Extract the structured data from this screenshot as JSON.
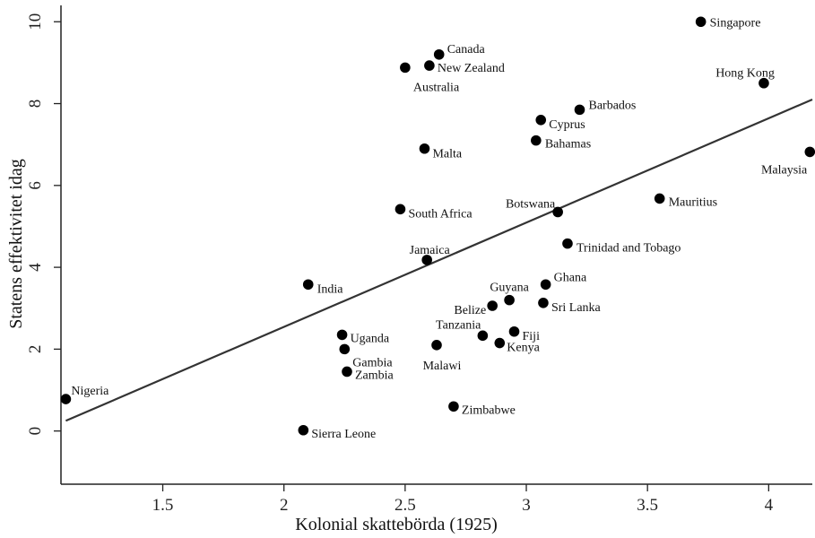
{
  "chart_data": {
    "type": "scatter",
    "title": "",
    "xlabel": "Kolonial skattebörda (1925)",
    "ylabel": "Statens effektivitet idag",
    "xlim": [
      1.08,
      4.18
    ],
    "ylim": [
      -1.3,
      10.4
    ],
    "xticks": [
      1.5,
      2,
      2.5,
      3,
      3.5,
      4
    ],
    "yticks": [
      0,
      2,
      4,
      6,
      8,
      10
    ],
    "grid": false,
    "legend": "none",
    "colors": {
      "points": "#000000",
      "line": "#333333",
      "axis": "#222222"
    },
    "fit_line": {
      "x": [
        1.1,
        4.18
      ],
      "y": [
        0.25,
        8.1
      ]
    },
    "points": [
      {
        "label": "Singapore",
        "x": 3.72,
        "y": 10.0
      },
      {
        "label": "Canada",
        "x": 2.64,
        "y": 9.2
      },
      {
        "label": "New Zealand",
        "x": 2.6,
        "y": 8.93
      },
      {
        "label": "Australia",
        "x": 2.5,
        "y": 8.88
      },
      {
        "label": "Hong Kong",
        "x": 3.98,
        "y": 8.5
      },
      {
        "label": "Barbados",
        "x": 3.22,
        "y": 7.85
      },
      {
        "label": "Cyprus",
        "x": 3.06,
        "y": 7.6
      },
      {
        "label": "Bahamas",
        "x": 3.04,
        "y": 7.1
      },
      {
        "label": "Malta",
        "x": 2.58,
        "y": 6.9
      },
      {
        "label": "Malaysia",
        "x": 4.17,
        "y": 6.82
      },
      {
        "label": "Mauritius",
        "x": 3.55,
        "y": 5.68
      },
      {
        "label": "South Africa",
        "x": 2.48,
        "y": 5.42
      },
      {
        "label": "Botswana",
        "x": 3.13,
        "y": 5.35
      },
      {
        "label": "Trinidad and Tobago",
        "x": 3.17,
        "y": 4.58
      },
      {
        "label": "Jamaica",
        "x": 2.59,
        "y": 4.18
      },
      {
        "label": "India",
        "x": 2.1,
        "y": 3.58
      },
      {
        "label": "Ghana",
        "x": 3.08,
        "y": 3.58
      },
      {
        "label": "Guyana",
        "x": 2.93,
        "y": 3.2
      },
      {
        "label": "Sri Lanka",
        "x": 3.07,
        "y": 3.13
      },
      {
        "label": "Belize",
        "x": 2.86,
        "y": 3.06
      },
      {
        "label": "Fiji",
        "x": 2.95,
        "y": 2.43
      },
      {
        "label": "Uganda",
        "x": 2.24,
        "y": 2.35
      },
      {
        "label": "Tanzania",
        "x": 2.82,
        "y": 2.33
      },
      {
        "label": "Kenya",
        "x": 2.89,
        "y": 2.15
      },
      {
        "label": "Malawi",
        "x": 2.63,
        "y": 2.1
      },
      {
        "label": "Gambia",
        "x": 2.25,
        "y": 2.0
      },
      {
        "label": "Zambia",
        "x": 2.26,
        "y": 1.45
      },
      {
        "label": "Nigeria",
        "x": 1.1,
        "y": 0.78
      },
      {
        "label": "Zimbabwe",
        "x": 2.7,
        "y": 0.6
      },
      {
        "label": "Sierra Leone",
        "x": 2.08,
        "y": 0.02
      }
    ]
  }
}
